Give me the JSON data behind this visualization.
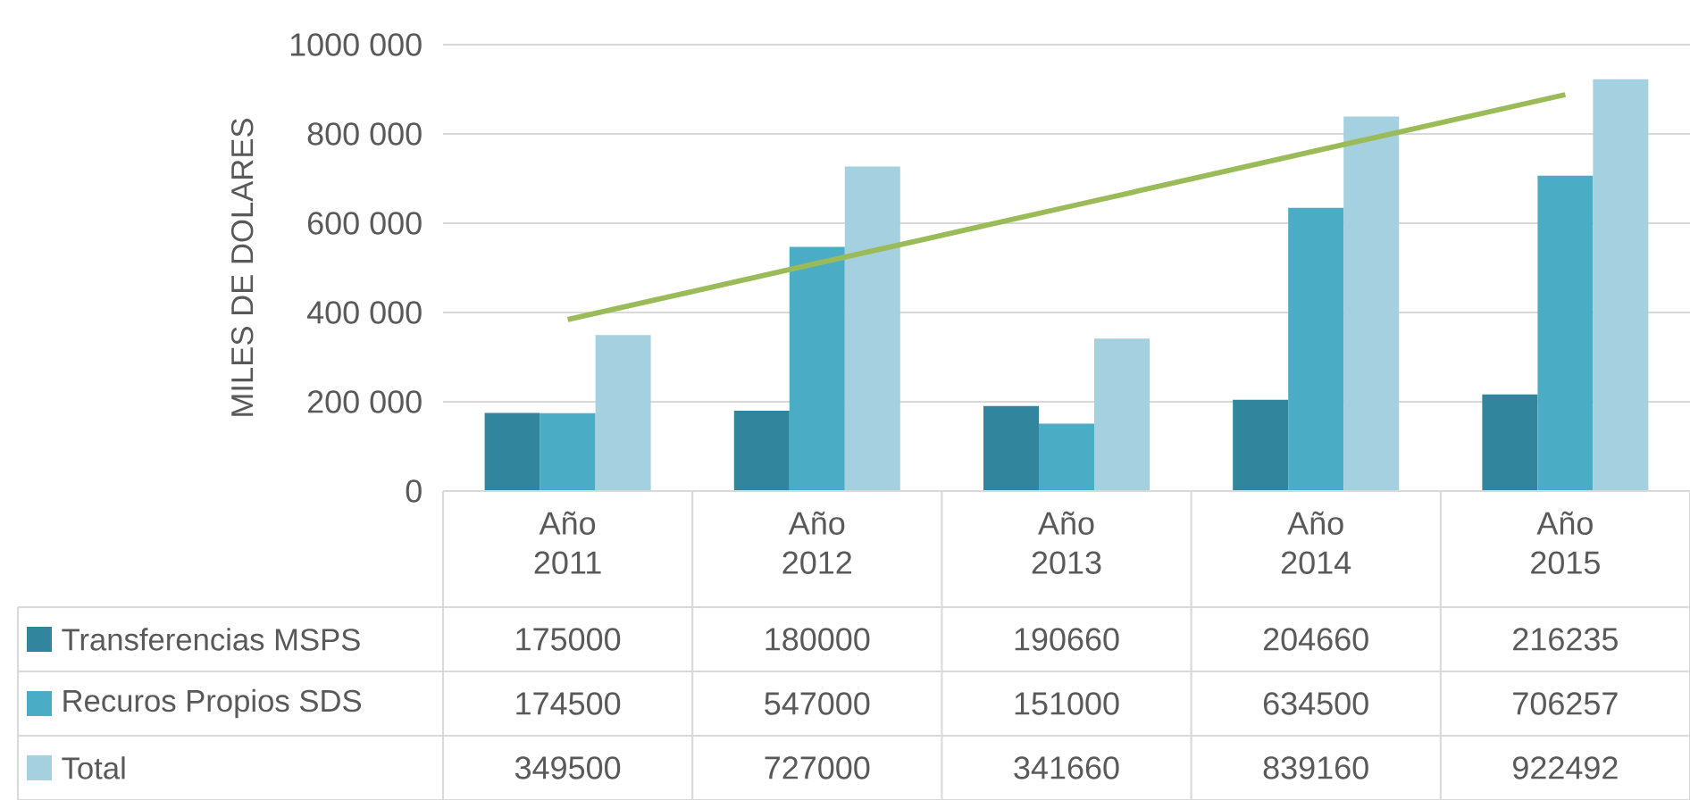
{
  "chart_data": {
    "type": "bar",
    "ylabel": "MILES DE DOLARES",
    "categories": [
      "Año 2011",
      "Año 2012",
      "Año 2013",
      "Año 2014",
      "Año 2015"
    ],
    "series": [
      {
        "name": "Transferencias MSPS",
        "color": "#31859c",
        "values": [
          175000,
          180000,
          190660,
          204660,
          216235
        ],
        "value_labels": [
          "175000",
          "180000",
          "190660",
          "204660",
          "216235"
        ]
      },
      {
        "name": "Recuros Propios SDS",
        "color": "#4bacc6",
        "values": [
          174500,
          547000,
          151000,
          634500,
          706257
        ],
        "value_labels": [
          "174500",
          "547000",
          "151000",
          "634500",
          "706257"
        ]
      },
      {
        "name": "Total",
        "color": "#a5d0df",
        "values": [
          349500,
          727000,
          341660,
          839160,
          922492
        ],
        "value_labels": [
          "349500",
          "727000",
          "341660",
          "839160",
          "922492"
        ]
      },
      {
        "type": "line",
        "color": "#9bbb59",
        "values": [
          384000,
          510000,
          636000,
          762000,
          888000
        ]
      }
    ],
    "ylim": [
      0,
      1000000
    ],
    "yticks": [
      0,
      {
        "value": 200000,
        "label": "200 000"
      },
      {
        "value": 400000,
        "label": "400 000"
      },
      {
        "value": 600000,
        "label": "600 000"
      },
      {
        "value": 800000,
        "label": "800 000"
      },
      {
        "value": 1000000,
        "label": "1000 000"
      }
    ],
    "grid": "y",
    "legend": "bottom"
  }
}
